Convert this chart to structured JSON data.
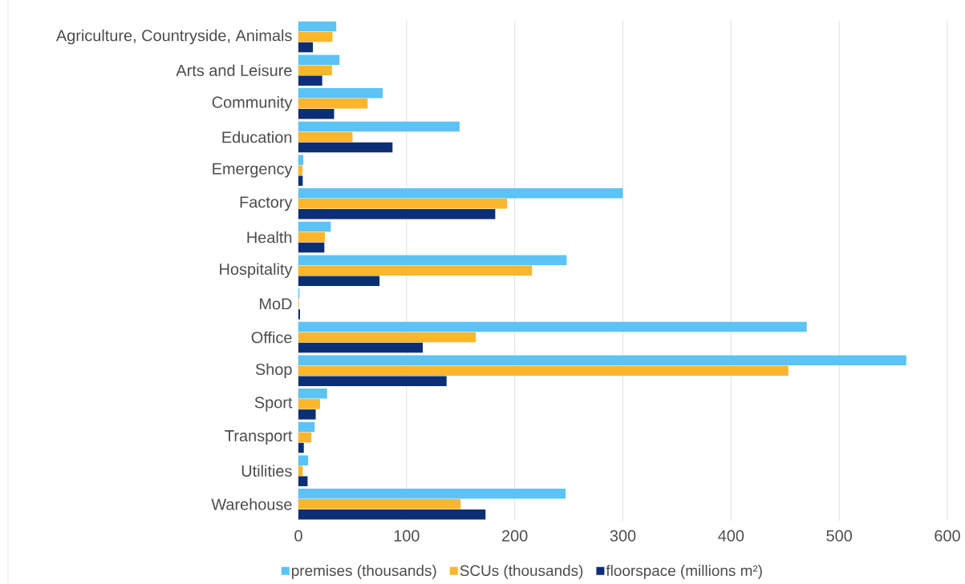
{
  "chart_data": {
    "type": "bar",
    "orientation": "horizontal",
    "categories": [
      "Agriculture, Countryside, Animals",
      "Arts and Leisure",
      "Community",
      "Education",
      "Emergency",
      "Factory",
      "Health",
      "Hospitality",
      "MoD",
      "Office",
      "Shop",
      "Sport",
      "Transport",
      "Utilities",
      "Warehouse"
    ],
    "series": [
      {
        "name": "premises (thousands)",
        "color": "#5bc3f5",
        "values": [
          35,
          38,
          78,
          149,
          4.5,
          300,
          30,
          248,
          1,
          470,
          562,
          26.5,
          15,
          9,
          247
        ]
      },
      {
        "name": "SCUs (thousands)",
        "color": "#fbb62c",
        "values": [
          31.5,
          31,
          64,
          50,
          3.7,
          193,
          24.5,
          216,
          0.5,
          164,
          453,
          20,
          12,
          4,
          150
        ]
      },
      {
        "name": "floorspace (millions m²)",
        "color": "#0c2e75",
        "values": [
          13.4,
          22,
          33,
          87,
          4,
          182,
          24,
          75,
          1.5,
          115,
          137,
          16,
          5,
          8.5,
          173
        ]
      }
    ],
    "xlim": [
      0,
      600
    ],
    "xticks": [
      0,
      100,
      200,
      300,
      400,
      500,
      600
    ],
    "grid": "x",
    "legend": "bottom"
  }
}
